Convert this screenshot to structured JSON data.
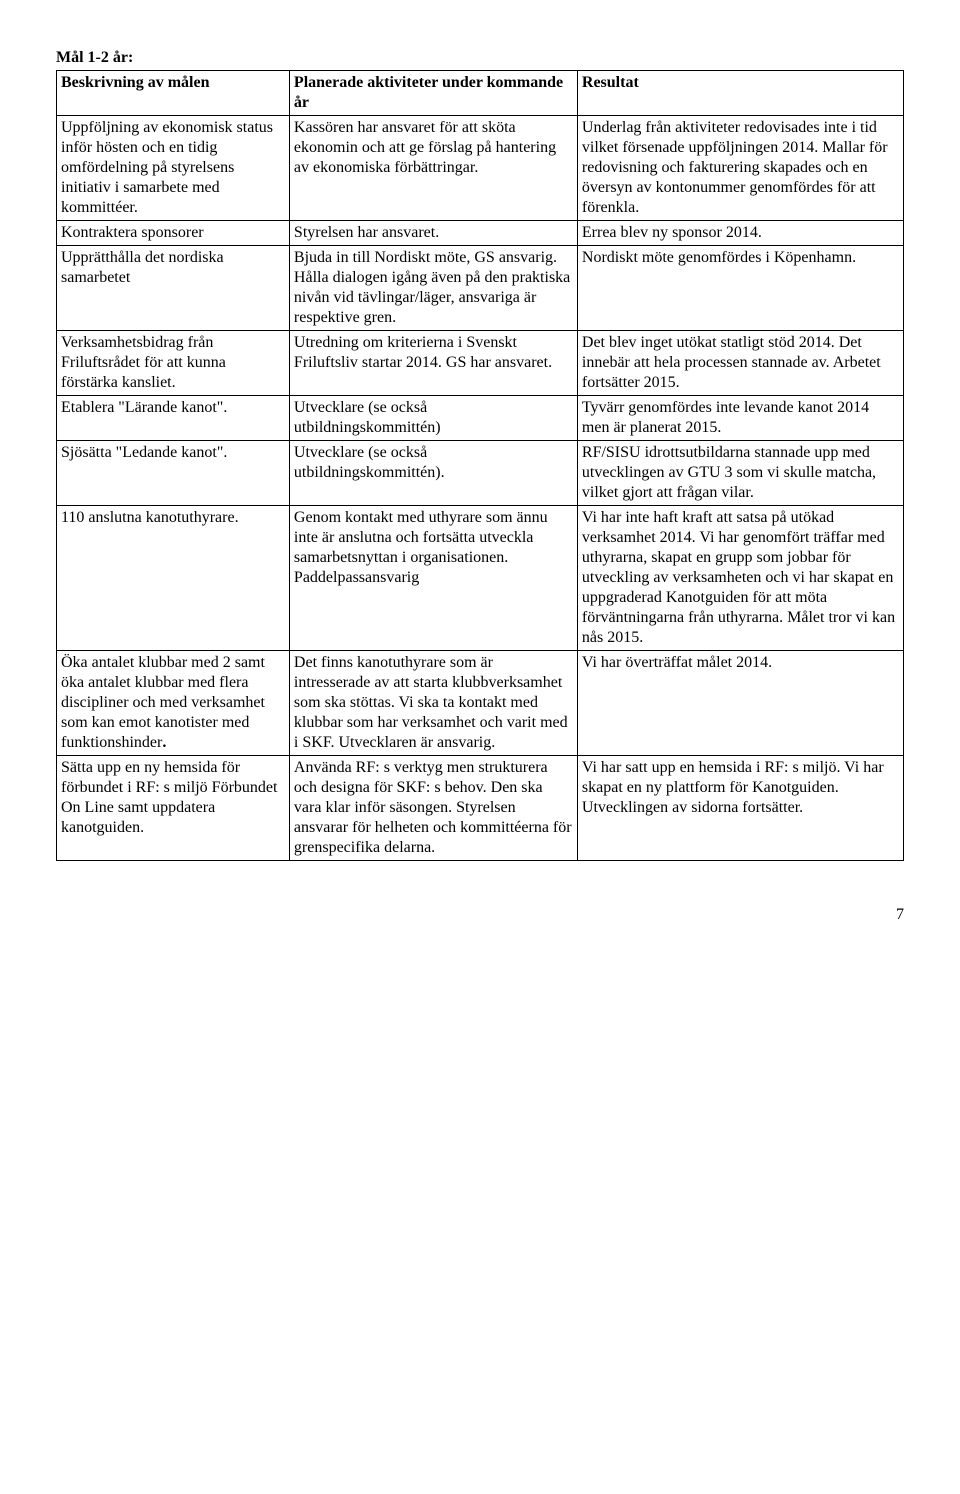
{
  "heading": "Mål 1-2 år:",
  "header": {
    "c1": "Beskrivning av målen",
    "c2": "Planerade aktiviteter under kommande år",
    "c3": "Resultat"
  },
  "rows": [
    {
      "c1": "Uppföljning av ekonomisk status inför hösten och en tidig omfördelning på styrelsens initiativ i samarbete med kommittéer.",
      "c2": "Kassören har ansvaret för att sköta ekonomin och att ge förslag på hantering av ekonomiska förbättringar.",
      "c3": "Underlag från aktiviteter redovisades inte i tid vilket försenade uppföljningen 2014. Mallar för redovisning och fakturering skapades och en översyn av kontonummer genomfördes för att förenkla."
    },
    {
      "c1": "Kontraktera sponsorer",
      "c2": "Styrelsen har ansvaret.",
      "c3": "Errea blev ny sponsor 2014."
    },
    {
      "c1": "Upprätthålla det nordiska samarbetet",
      "c2": "Bjuda in till Nordiskt möte, GS ansvarig. Hålla dialogen igång även på den praktiska nivån vid tävlingar/läger, ansvariga är respektive gren.",
      "c3": "Nordiskt möte genomfördes i Köpenhamn."
    },
    {
      "c1": "Verksamhetsbidrag från Friluftsrådet för att kunna förstärka kansliet.",
      "c2": "Utredning om kriterierna i Svenskt Friluftsliv startar 2014. GS har ansvaret.",
      "c3": "Det blev inget utökat statligt stöd 2014. Det innebär att hela processen stannade av. Arbetet fortsätter 2015."
    },
    {
      "c1": "Etablera \"Lärande kanot\".",
      "c2": "Utvecklare (se också utbildningskommittén)",
      "c3": "Tyvärr genomfördes inte levande kanot 2014 men är planerat 2015."
    },
    {
      "c1": "Sjösätta \"Ledande kanot\".",
      "c2": "Utvecklare (se också utbildningskommittén).",
      "c3": "RF/SISU idrottsutbildarna stannade upp med utvecklingen av GTU 3 som vi skulle matcha, vilket gjort att frågan vilar."
    },
    {
      "c1": "110 anslutna kanotuthyrare.",
      "c2": "Genom kontakt med uthyrare som ännu inte är anslutna och fortsätta utveckla samarbetsnyttan i organisationen. Paddelpassansvarig",
      "c3": "Vi har inte haft kraft att satsa på utökad verksamhet 2014. Vi har genomfört träffar med uthyrarna, skapat en grupp som jobbar för utveckling av verksamheten och vi har skapat en uppgraderad Kanotguiden för att möta förväntningarna från uthyrarna. Målet tror vi kan nås 2015."
    },
    {
      "c1_html": "Öka antalet klubbar med 2 samt öka antalet klubbar med flera discipliner och med verksamhet som kan emot kanotister med funktionshinder<b>.</b>",
      "c2": "Det finns kanotuthyrare som är intresserade av att starta klubbverksamhet som ska stöttas. Vi ska ta kontakt med klubbar som har verksamhet och varit med i SKF. Utvecklaren är ansvarig.",
      "c3": "Vi har överträffat målet 2014."
    },
    {
      "c1": "Sätta upp en ny hemsida för förbundet i RF: s miljö Förbundet On Line samt uppdatera kanotguiden.",
      "c2": "Använda RF: s verktyg men strukturera och designa för SKF: s behov. Den ska vara klar inför säsongen. Styrelsen ansvarar för helheten och kommittéerna för grenspecifika delarna.",
      "c3": "Vi har satt upp en hemsida i RF: s miljö. Vi har skapat en ny plattform för Kanotguiden. Utvecklingen av sidorna fortsätter."
    }
  ],
  "pageNumber": "7"
}
